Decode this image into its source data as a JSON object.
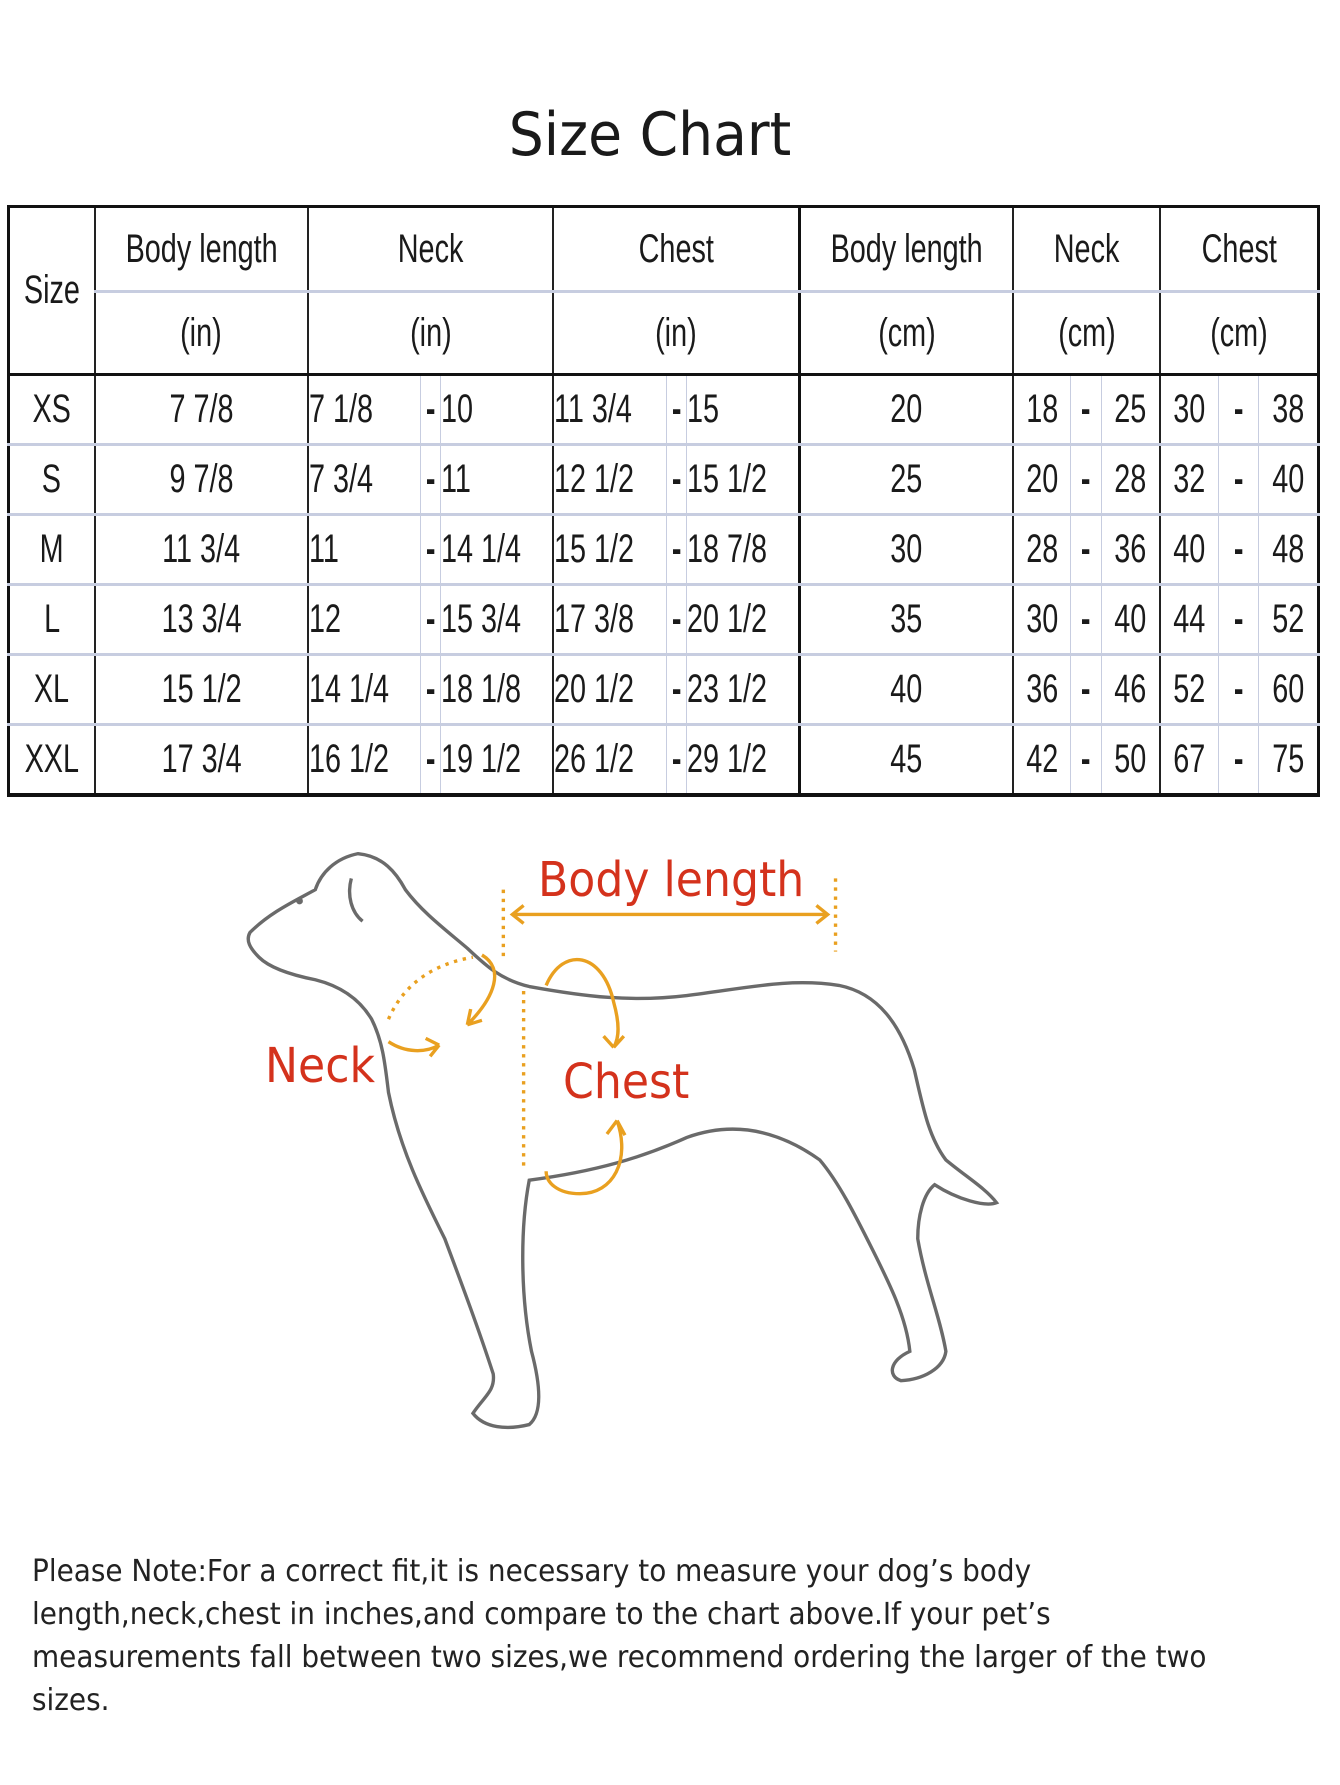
{
  "title": "Size Chart",
  "table": {
    "size_header": "Size",
    "groups": [
      {
        "name": "Body length",
        "unit": "(in)"
      },
      {
        "name": "Neck",
        "unit": "(in)"
      },
      {
        "name": "Chest",
        "unit": "(in)"
      },
      {
        "name": "Body length",
        "unit": "(cm)"
      },
      {
        "name": "Neck",
        "unit": "(cm)"
      },
      {
        "name": "Chest",
        "unit": "(cm)"
      }
    ],
    "separator": "-",
    "rows": [
      {
        "size": "XS",
        "body_in": "7 7/8",
        "neck_in": [
          "7 1/8",
          "10"
        ],
        "chest_in": [
          "11 3/4",
          "15"
        ],
        "body_cm": "20",
        "neck_cm": [
          "18",
          "25"
        ],
        "chest_cm": [
          "30",
          "38"
        ]
      },
      {
        "size": "S",
        "body_in": "9 7/8",
        "neck_in": [
          "7 3/4",
          "11"
        ],
        "chest_in": [
          "12 1/2",
          "15 1/2"
        ],
        "body_cm": "25",
        "neck_cm": [
          "20",
          "28"
        ],
        "chest_cm": [
          "32",
          "40"
        ]
      },
      {
        "size": "M",
        "body_in": "11 3/4",
        "neck_in": [
          "11",
          "14 1/4"
        ],
        "chest_in": [
          "15 1/2",
          "18 7/8"
        ],
        "body_cm": "30",
        "neck_cm": [
          "28",
          "36"
        ],
        "chest_cm": [
          "40",
          "48"
        ]
      },
      {
        "size": "L",
        "body_in": "13 3/4",
        "neck_in": [
          "12",
          "15 3/4"
        ],
        "chest_in": [
          "17 3/8",
          "20 1/2"
        ],
        "body_cm": "35",
        "neck_cm": [
          "30",
          "40"
        ],
        "chest_cm": [
          "44",
          "52"
        ]
      },
      {
        "size": "XL",
        "body_in": "15 1/2",
        "neck_in": [
          "14 1/4",
          "18 1/8"
        ],
        "chest_in": [
          "20 1/2",
          "23 1/2"
        ],
        "body_cm": "40",
        "neck_cm": [
          "36",
          "46"
        ],
        "chest_cm": [
          "52",
          "60"
        ]
      },
      {
        "size": "XXL",
        "body_in": "17 3/4",
        "neck_in": [
          "16 1/2",
          "19 1/2"
        ],
        "chest_in": [
          "26 1/2",
          "29 1/2"
        ],
        "body_cm": "45",
        "neck_cm": [
          "42",
          "50"
        ],
        "chest_cm": [
          "67",
          "75"
        ]
      }
    ]
  },
  "diagram": {
    "labels": {
      "body_length": "Body length",
      "neck": "Neck",
      "chest": "Chest"
    },
    "label_color": "#d4321c",
    "arrow_color": "#e9a020",
    "outline_color": "#666666"
  },
  "note": "Please Note:For a correct fit,it is necessary to measure your dog’s body length,neck,chest in inches,and compare to the chart above.If your pet’s measurements fall between two sizes,we  recommend ordering the larger of the two sizes."
}
